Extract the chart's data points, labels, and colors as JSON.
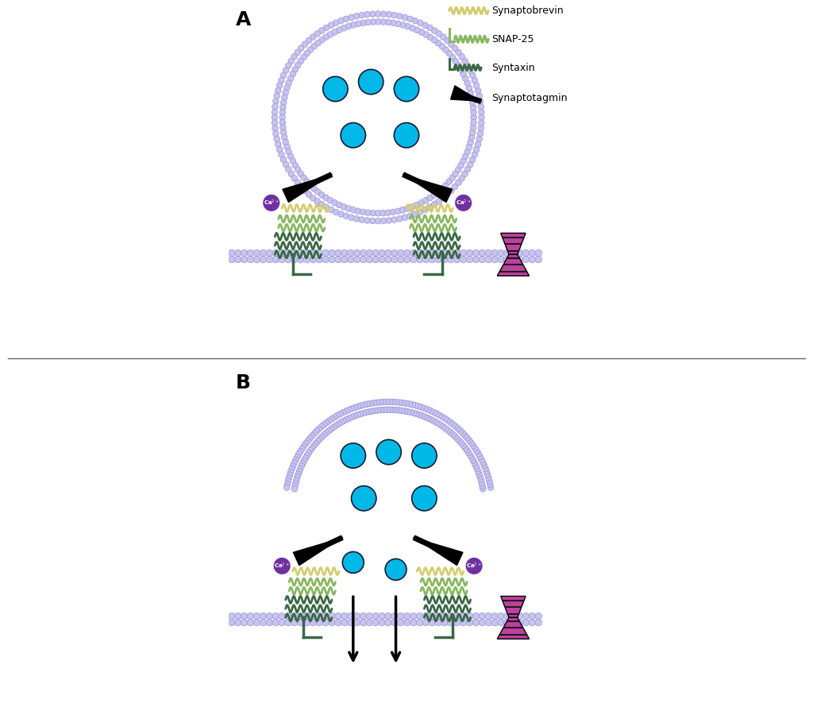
{
  "bg_color": "#ffffff",
  "membrane_color": "#c8c4f0",
  "membrane_outline": "#8884cc",
  "synaptobrevin_color": "#d4cc70",
  "snap25_color": "#88b860",
  "syntaxin_color": "#3a6845",
  "synaptotagmin_color": "#111111",
  "ca_color": "#7030a0",
  "ca_text_color": "#ffffff",
  "receptor_color": "#c040a0",
  "receptor_stripe": "#1a1a1a",
  "transmitter_color": "#00b8e8",
  "transmitter_outline": "#1a1a2e",
  "divider_color": "#666666",
  "label_A": "A",
  "label_B": "B",
  "legend_synaptobrevin": "Synaptobrevin",
  "legend_snap25": "SNAP-25",
  "legend_syntaxin": "Syntaxin",
  "legend_synaptotagmin": "Synaptotagmin"
}
